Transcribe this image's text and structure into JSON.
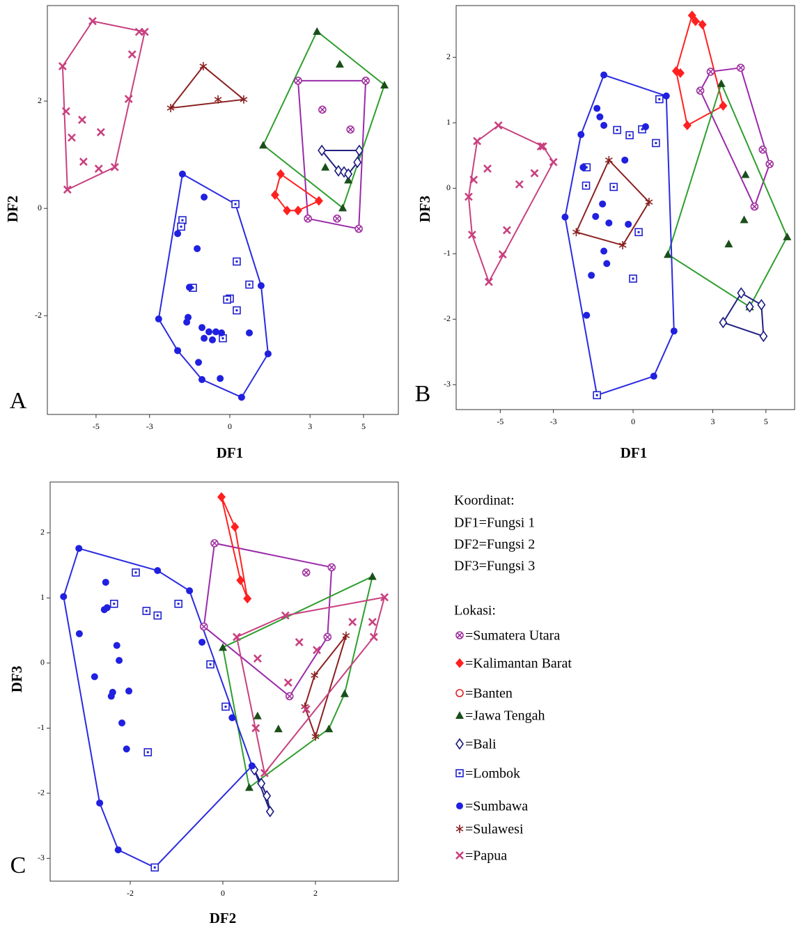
{
  "legend": {
    "coordinates_title": "Koordinat:",
    "coordinates": [
      "DF1=Fungsi 1",
      "DF2=Fungsi 2",
      "DF3=Fungsi 3"
    ],
    "title": "Lokasi:",
    "items": [
      "=Sumatera Utara",
      "=Kalimantan Barat",
      "=Banten",
      "=Jawa Tengah",
      "=Bali",
      "=Lombok",
      "=Sumbawa",
      "=Sulawesi",
      "=Papua"
    ]
  },
  "chart_data": [
    {
      "type": "scatter",
      "panel_label": "A",
      "x_label": "DF1",
      "y_label": "DF2",
      "xlim": [
        -6.82,
        6.3
      ],
      "ylim": [
        -3.84,
        3.78
      ],
      "xticks": [
        -5,
        -3,
        0,
        3,
        5
      ],
      "yticks": [
        -2,
        0,
        2
      ],
      "series": [
        {
          "marker": "circle-x",
          "color": "#a030a0",
          "x": [
            2.55,
            5.08,
            3.46,
            4.51,
            2.92,
            4.01,
            4.82
          ],
          "y": [
            2.38,
            2.38,
            1.84,
            1.47,
            -0.19,
            -0.19,
            -0.38
          ]
        },
        {
          "marker": "diamond",
          "color": "#ff2020",
          "x": [
            1.9,
            1.69,
            2.14,
            2.55,
            3.33
          ],
          "y": [
            0.64,
            0.25,
            -0.04,
            -0.04,
            0.14
          ]
        },
        {
          "marker": "circle-open",
          "color": "#e02020",
          "x": [],
          "y": []
        },
        {
          "marker": "triangle",
          "color": "#1a4f1a",
          "x": [
            3.26,
            4.11,
            5.78,
            1.25,
            3.57,
            4.22,
            4.43
          ],
          "y": [
            3.3,
            2.69,
            2.3,
            1.18,
            0.77,
            0.01,
            0.53
          ]
        },
        {
          "marker": "diamond-open",
          "color": "#1a1a80",
          "x": [
            3.44,
            4.84,
            4.06,
            4.27,
            4.77,
            4.43
          ],
          "y": [
            1.08,
            1.08,
            0.7,
            0.68,
            0.86,
            0.64
          ]
        },
        {
          "marker": "square-dot",
          "color": "#2020d0",
          "x": [
            0.21,
            -1.77,
            -1.82,
            0.26,
            -1.38,
            0.73,
            0,
            -0.1,
            0.26,
            -0.26
          ],
          "y": [
            0.08,
            -0.22,
            -0.34,
            -0.99,
            -1.48,
            -1.42,
            -1.68,
            -1.7,
            -1.9,
            -2.42
          ]
        },
        {
          "marker": "dot",
          "color": "#2020e0",
          "x": [
            -1.77,
            -0.96,
            -1.95,
            -1.22,
            -2.66,
            -1.51,
            -1.56,
            -1.61,
            -1.04,
            -0.78,
            -0.52,
            -0.31,
            -0.65,
            -0.96,
            1.17,
            0.73,
            -1.95,
            -1.04,
            -0.36,
            0.44,
            1.43,
            -1.17
          ],
          "y": [
            0.64,
            0.21,
            -0.47,
            -0.75,
            -2.06,
            -1.47,
            -2.03,
            -2.12,
            -2.22,
            -2.3,
            -2.3,
            -2.32,
            -2.45,
            -2.42,
            -1.44,
            -2.32,
            -2.65,
            -3.19,
            -3.17,
            -3.52,
            -2.71,
            -2.87
          ]
        },
        {
          "marker": "asterisk",
          "color": "#8b2020",
          "x": [
            -0.99,
            -2.21,
            -0.44,
            0.52
          ],
          "y": [
            2.65,
            1.87,
            2.03,
            2.03
          ]
        },
        {
          "marker": "x",
          "color": "#c8407f",
          "x": [
            -5.13,
            -3.39,
            -3.18,
            -3.65,
            -6.25,
            -3.78,
            -6.12,
            -5.52,
            -5.91,
            -4.82,
            -5.47,
            -4.9,
            -4.3,
            -6.07
          ],
          "y": [
            3.49,
            3.29,
            3.29,
            2.87,
            2.65,
            2.04,
            1.81,
            1.65,
            1.32,
            1.42,
            0.87,
            0.74,
            0.77,
            0.35
          ]
        }
      ],
      "hulls": [
        {
          "series": [
            0
          ],
          "color": "#9a2aaa"
        },
        {
          "series": [
            1
          ],
          "color": "#ff2020"
        },
        {
          "series": [
            3
          ],
          "color": "#2e9e2e"
        },
        {
          "series": [
            4
          ],
          "color": "#202080"
        },
        {
          "series": [
            5,
            6
          ],
          "color": "#2a2ae0"
        },
        {
          "series": [
            7
          ],
          "color": "#8b2020"
        },
        {
          "series": [
            8
          ],
          "color": "#c8407f"
        }
      ]
    },
    {
      "type": "scatter",
      "panel_label": "B",
      "x_label": "DF1",
      "y_label": "DF3",
      "xlim": [
        -6.66,
        6.08
      ],
      "ylim": [
        -3.38,
        2.79
      ],
      "xticks": [
        -5,
        -3,
        0,
        3,
        5
      ],
      "yticks": [
        -3,
        -2,
        -1,
        0,
        1,
        2
      ],
      "series": [
        {
          "marker": "circle-x",
          "color": "#a030a0",
          "x": [
            2.53,
            2.92,
            4.05,
            4.88,
            5.14,
            4.57
          ],
          "y": [
            1.49,
            1.78,
            1.84,
            0.59,
            0.37,
            -0.28
          ]
        },
        {
          "marker": "diamond",
          "color": "#ff2020",
          "x": [
            2.22,
            2.35,
            2.61,
            1.62,
            1.78,
            2.04,
            3.39
          ],
          "y": [
            2.64,
            2.55,
            2.5,
            1.79,
            1.76,
            0.96,
            1.26
          ]
        },
        {
          "marker": "circle-open",
          "color": "#e02020",
          "x": [],
          "y": []
        },
        {
          "marker": "triangle",
          "color": "#1a4f1a",
          "x": [
            3.32,
            4.23,
            4.18,
            3.6,
            5.8,
            1.31,
            4.39
          ],
          "y": [
            1.6,
            0.21,
            -0.48,
            -0.85,
            -0.74,
            -1.01,
            -1.81
          ]
        },
        {
          "marker": "diamond-open",
          "color": "#1a1a80",
          "x": [
            3.39,
            4.07,
            4.39,
            4.83,
            4.91
          ],
          "y": [
            -2.05,
            -1.6,
            -1.81,
            -1.78,
            -2.26
          ]
        },
        {
          "marker": "square-dot",
          "color": "#2020d0",
          "x": [
            0.99,
            -0.6,
            -0.13,
            0.34,
            0.86,
            -1.75,
            -1.77,
            -0.73,
            0.21,
            0,
            -1.36
          ],
          "y": [
            1.36,
            0.89,
            0.81,
            0.9,
            0.69,
            0.32,
            0.04,
            0.02,
            -0.67,
            -1.38,
            -3.16
          ]
        },
        {
          "marker": "dot",
          "color": "#2020e0",
          "x": [
            -1.1,
            -1.36,
            -1.25,
            -1.96,
            -1.1,
            0.47,
            -0.31,
            -1.88,
            -1.15,
            -1.41,
            -0.91,
            -0.18,
            -2.56,
            -0.99,
            -1.57,
            -1.1,
            -1.75,
            0.78,
            1.54,
            1.25
          ],
          "y": [
            1.73,
            1.22,
            1.09,
            0.82,
            0.96,
            0.94,
            0.43,
            0.32,
            -0.24,
            -0.43,
            -0.53,
            -0.55,
            -0.44,
            -1.15,
            -1.33,
            -0.96,
            -1.94,
            -2.87,
            -2.18,
            1.41
          ]
        },
        {
          "marker": "asterisk",
          "color": "#8b2020",
          "x": [
            -0.91,
            0.6,
            -2.14,
            -0.39
          ],
          "y": [
            0.43,
            -0.21,
            -0.67,
            -0.87
          ]
        },
        {
          "marker": "x",
          "color": "#c8407f",
          "x": [
            -5.07,
            -5.87,
            -3.47,
            -3.39,
            -3.0,
            -5.48,
            -6.0,
            -3.71,
            -4.28,
            -6.19,
            -4.75,
            -6.06,
            -4.91,
            -5.43
          ],
          "y": [
            0.96,
            0.72,
            0.64,
            0.64,
            0.4,
            0.3,
            0.13,
            0.23,
            0.06,
            -0.13,
            -0.64,
            -0.71,
            -1.01,
            -1.43
          ]
        }
      ],
      "hulls": [
        {
          "series": [
            0
          ],
          "color": "#9a2aaa"
        },
        {
          "series": [
            1
          ],
          "color": "#ff2020"
        },
        {
          "series": [
            3
          ],
          "color": "#2e9e2e"
        },
        {
          "series": [
            4
          ],
          "color": "#202080"
        },
        {
          "series": [
            5,
            6
          ],
          "color": "#2a2ae0"
        },
        {
          "series": [
            7
          ],
          "color": "#8b2020"
        },
        {
          "series": [
            8
          ],
          "color": "#c8407f"
        }
      ]
    },
    {
      "type": "scatter",
      "panel_label": "C",
      "x_label": "DF2",
      "y_label": "DF3",
      "xlim": [
        -3.73,
        3.79
      ],
      "ylim": [
        -3.35,
        2.78
      ],
      "xticks": [
        -2,
        0,
        2
      ],
      "yticks": [
        -3,
        -2,
        -1,
        0,
        1,
        2
      ],
      "series": [
        {
          "marker": "circle-x",
          "color": "#a030a0",
          "x": [
            -0.18,
            1.8,
            2.35,
            2.26,
            1.44,
            -0.41
          ],
          "y": [
            1.84,
            1.39,
            1.47,
            0.4,
            -0.51,
            0.56
          ]
        },
        {
          "marker": "diamond",
          "color": "#ff2020",
          "x": [
            -0.03,
            0.26,
            0.38,
            0.53
          ],
          "y": [
            2.55,
            2.09,
            1.27,
            0.99
          ]
        },
        {
          "marker": "circle-open",
          "color": "#e02020",
          "x": [],
          "y": []
        },
        {
          "marker": "triangle",
          "color": "#1a4f1a",
          "x": [
            3.23,
            0,
            0.75,
            1.2,
            2.29,
            2.63,
            0.57
          ],
          "y": [
            1.33,
            0.24,
            -0.81,
            -1.01,
            -1.01,
            -0.47,
            -1.91
          ]
        },
        {
          "marker": "diamond-open",
          "color": "#1a1a80",
          "x": [
            0.68,
            0.83,
            0.95,
            1.02
          ],
          "y": [
            -1.64,
            -1.85,
            -2.04,
            -2.28
          ]
        },
        {
          "marker": "square-dot",
          "color": "#2020d0",
          "x": [
            -1.88,
            -2.35,
            -1.65,
            -1.41,
            -0.96,
            -0.27,
            0.06,
            -1.62,
            -1.47
          ],
          "y": [
            1.39,
            0.91,
            0.8,
            0.73,
            0.91,
            -0.02,
            -0.67,
            -1.37,
            -3.14
          ]
        },
        {
          "marker": "dot",
          "color": "#2020e0",
          "x": [
            -3.11,
            -3.44,
            -1.41,
            -0.72,
            -2.53,
            -2.56,
            -2.5,
            -3.1,
            -2.29,
            -2.24,
            -2.77,
            -2.38,
            -2.41,
            -2.03,
            -2.18,
            -2.08,
            0.2,
            -2.66,
            -2.26,
            -0.45,
            0.63
          ],
          "y": [
            1.76,
            1.02,
            1.42,
            1.11,
            1.24,
            0.82,
            0.85,
            0.45,
            0.27,
            0.04,
            -0.21,
            -0.45,
            -0.51,
            -0.43,
            -0.92,
            -1.32,
            -0.84,
            -2.15,
            -2.87,
            0.32,
            -1.58
          ]
        },
        {
          "marker": "asterisk",
          "color": "#8b2020",
          "x": [
            1.98,
            1.77,
            2.0,
            2.66
          ],
          "y": [
            -0.19,
            -0.67,
            -1.13,
            0.42
          ]
        },
        {
          "marker": "x",
          "color": "#c8407f",
          "x": [
            1.35,
            1.65,
            0.75,
            2.03,
            2.8,
            3.23,
            3.49,
            3.26,
            1.41,
            0.3,
            0.71,
            0.9,
            1.8
          ],
          "y": [
            0.73,
            0.32,
            0.07,
            0.2,
            0.63,
            0.63,
            1.01,
            0.4,
            -0.3,
            0.4,
            -1.0,
            -1.69,
            -0.71
          ]
        }
      ],
      "hulls": [
        {
          "series": [
            0
          ],
          "color": "#9a2aaa"
        },
        {
          "series": [
            1
          ],
          "color": "#ff2020"
        },
        {
          "series": [
            3
          ],
          "color": "#2e9e2e"
        },
        {
          "series": [
            4
          ],
          "color": "#202080"
        },
        {
          "series": [
            5,
            6
          ],
          "color": "#2a2ae0"
        },
        {
          "series": [
            7
          ],
          "color": "#8b2020"
        },
        {
          "series": [
            8
          ],
          "color": "#c8407f"
        }
      ]
    }
  ]
}
